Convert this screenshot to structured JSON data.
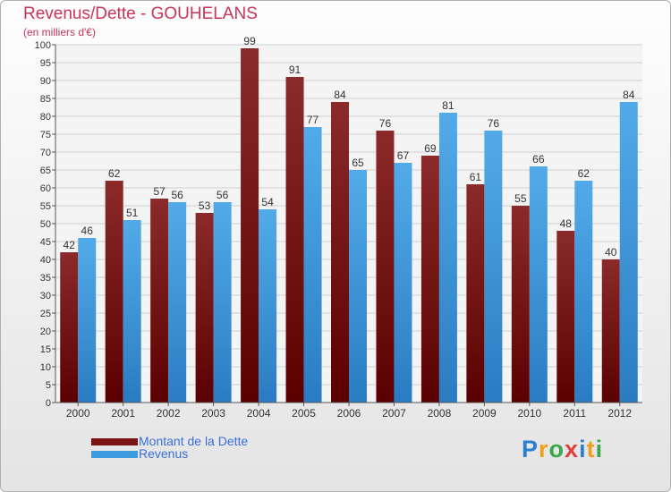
{
  "header": {
    "title": "Revenus/Dette - GOUHELANS",
    "subtitle": "(en milliers d'€)"
  },
  "chart_data": {
    "type": "bar",
    "categories": [
      "2000",
      "2001",
      "2002",
      "2003",
      "2004",
      "2005",
      "2006",
      "2007",
      "2008",
      "2009",
      "2010",
      "2011",
      "2012"
    ],
    "series": [
      {
        "name": "Montant de la Dette",
        "values": [
          42,
          62,
          57,
          53,
          99,
          91,
          84,
          76,
          69,
          61,
          55,
          48,
          40
        ],
        "color": "#7a1414"
      },
      {
        "name": "Revenus",
        "values": [
          46,
          51,
          56,
          56,
          54,
          77,
          65,
          67,
          81,
          76,
          66,
          62,
          84
        ],
        "color": "#3d9be0"
      }
    ],
    "ylim": [
      0,
      100
    ],
    "ytick_step": 5,
    "grid": true,
    "legend_position": "bottom-left",
    "data_labels": true
  },
  "legend": {
    "items": [
      {
        "label": "Montant de la Dette",
        "color": "#7a1414"
      },
      {
        "label": "Revenus",
        "color": "#3d9be0"
      }
    ]
  },
  "logo": {
    "text": "Proxiti",
    "letters": [
      "P",
      "r",
      "o",
      "x",
      "i",
      "t",
      "i"
    ],
    "colors": [
      "#2b7fd0",
      "#f0a020",
      "#3aa64a",
      "#e04040",
      "#2b7fd0",
      "#f0a020",
      "#3aa64a"
    ]
  }
}
